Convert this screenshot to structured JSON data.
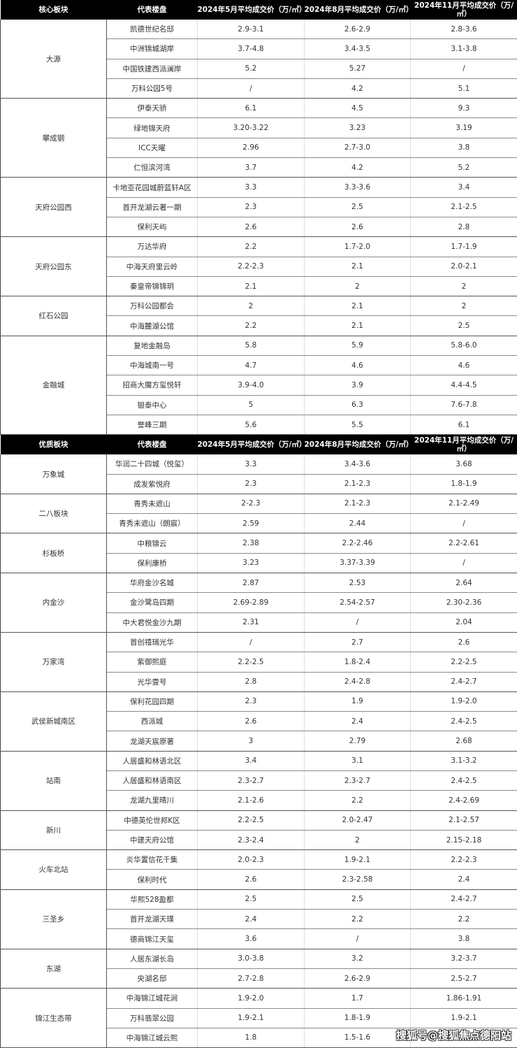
{
  "sections": [
    {
      "header": [
        "核心板块",
        "代表楼盘",
        "2024年5月平均成交价（万/㎡）",
        "2024年8月平均成交价（万/㎡）",
        "2024年11月平均成交价（万/㎡）"
      ],
      "groups": [
        {
          "name": "大源",
          "rows": [
            [
              "凯德世纪名邸",
              "2.9-3.1",
              "2.6-2.9",
              "2.8-3.6"
            ],
            [
              "中洲锦城湖岸",
              "3.7-4.8",
              "3.4-3.5",
              "3.1-3.8"
            ],
            [
              "中国铁建西派澜岸",
              "5.2",
              "5.27",
              "/"
            ],
            [
              "万科公园5号",
              "/",
              "4.2",
              "5.1"
            ]
          ]
        },
        {
          "name": "攀成钢",
          "rows": [
            [
              "伊泰天骄",
              "6.1",
              "4.5",
              "9.3"
            ],
            [
              "绿地锦天府",
              "3.20-3.22",
              "3.23",
              "3.19"
            ],
            [
              "ICC天曜",
              "2.96",
              "2.7-3.0",
              "3.8"
            ],
            [
              "仁恒滨河湾",
              "3.7",
              "4.2",
              "5.2"
            ]
          ]
        },
        {
          "name": "天府公园西",
          "rows": [
            [
              "卡地亚花园城蔚蓝轩A区",
              "3.3",
              "3.3-3.6",
              "3.4"
            ],
            [
              "首开龙湖云著一期",
              "2.3",
              "2.5",
              "2.1-2.5"
            ],
            [
              "保利天屿",
              "2.6",
              "2.6",
              "2.8"
            ]
          ]
        },
        {
          "name": "天府公园东",
          "rows": [
            [
              "万达华府",
              "2.2",
              "1.7-2.0",
              "1.7-1.9"
            ],
            [
              "中海天府里云岭",
              "2.2-2.3",
              "2.1",
              "2.0-2.1"
            ],
            [
              "秦皇帝锦锦玥",
              "2.1",
              "2",
              "2"
            ]
          ]
        },
        {
          "name": "红石公园",
          "rows": [
            [
              "万科公园都会",
              "2",
              "2.1",
              "2"
            ],
            [
              "中海麓湖公馆",
              "2.2",
              "2.1",
              "2.5"
            ]
          ]
        },
        {
          "name": "金融城",
          "rows": [
            [
              "复地金融岛",
              "5.8",
              "5.9",
              "5.8-6.0"
            ],
            [
              "中海城南一号",
              "4.7",
              "4.6",
              "4.6"
            ],
            [
              "招商大魔方玺悦轩",
              "3.9-4.0",
              "3.9",
              "4.4-4.5"
            ],
            [
              "银泰中心",
              "5",
              "6.3",
              "7.6-7.8"
            ],
            [
              "誉峰三期",
              "5.6",
              "5.5",
              "6.1"
            ]
          ]
        }
      ]
    },
    {
      "header": [
        "优质板块",
        "代表楼盘",
        "2024年5月平均成交价（万/㎡）",
        "2024年8月平均成交价（万/㎡）",
        "2024年11月平均成交价（万/㎡）"
      ],
      "groups": [
        {
          "name": "万象城",
          "rows": [
            [
              "华润二十四城（悦玺）",
              "3.3",
              "3.4-3.6",
              "3.68"
            ],
            [
              "成发紫悦府",
              "2.3",
              "2.1-2.3",
              "1.8-1.9"
            ]
          ]
        },
        {
          "name": "二八板块",
          "rows": [
            [
              "青秀未遮山",
              "2-2.3",
              "2.1-2.3",
              "2.1-2.49"
            ],
            [
              "青秀未遮山（朗宸）",
              "2.59",
              "2.44",
              "/"
            ]
          ]
        },
        {
          "name": "杉板桥",
          "rows": [
            [
              "中粮锦云",
              "2.38",
              "2.2-2.46",
              "2.2-2.61"
            ],
            [
              "保利康桥",
              "3.23",
              "3.37-3.39",
              "/"
            ]
          ]
        },
        {
          "name": "内金沙",
          "rows": [
            [
              "华府金沙名城",
              "2.87",
              "2.53",
              "2.64"
            ],
            [
              "金沙鹭岛四期",
              "2.69-2.89",
              "2.54-2.57",
              "2.30-2.36"
            ],
            [
              "中大君悦金沙九期",
              "2.31",
              "/",
              "2.04"
            ]
          ]
        },
        {
          "name": "万家湾",
          "rows": [
            [
              "首创禧瑞光华",
              "/",
              "2.7",
              "2.6"
            ],
            [
              "紫御熙庭",
              "2.2-2.5",
              "1.8-2.4",
              "2.2-2.5"
            ],
            [
              "光华壹号",
              "2.8",
              "2.4-2.8",
              "2.4-2.7"
            ]
          ]
        },
        {
          "name": "武侯新城南区",
          "rows": [
            [
              "保利花园四期",
              "2.3",
              "1.9",
              "1.9-2.0"
            ],
            [
              "西派城",
              "2.6",
              "2.4",
              "2.4-2.5"
            ],
            [
              "龙湖天宸原著",
              "3",
              "2.79",
              "2.68"
            ]
          ]
        },
        {
          "name": "站南",
          "rows": [
            [
              "人居盛和林语北区",
              "3.4",
              "3.1",
              "3.1-3.2"
            ],
            [
              "人居盛和林语南区",
              "2.3-2.7",
              "2.3-2.7",
              "2.4-2.5"
            ],
            [
              "龙湖九里晴川",
              "2.1-2.6",
              "2.2",
              "2.4-2.69"
            ]
          ]
        },
        {
          "name": "新川",
          "rows": [
            [
              "中德英伦世邦K区",
              "2.2-2.5",
              "2.0-2.47",
              "2.1-2.57"
            ],
            [
              "中建天府公馆",
              "2.3-2.4",
              "2",
              "2.15-2.18"
            ]
          ]
        },
        {
          "name": "火车北站",
          "rows": [
            [
              "炎华置信花千集",
              "2.0-2.3",
              "1.9-2.1",
              "2.2-2.3"
            ],
            [
              "保利时代",
              "2.6",
              "2.3-2.58",
              "2.4"
            ]
          ]
        },
        {
          "name": "三圣乡",
          "rows": [
            [
              "华熙528盈都",
              "2.5",
              "2.5",
              "2.4-2.7"
            ],
            [
              "首开龙湖天璞",
              "2.4",
              "2.2",
              "2.2"
            ],
            [
              "德商锦江天玺",
              "3.6",
              "/",
              "3.8"
            ]
          ]
        },
        {
          "name": "东湖",
          "rows": [
            [
              "人居东湖长岛",
              "3.0-3.8",
              "3.2",
              "3.2-3.7"
            ],
            [
              "央湖名邸",
              "2.7-2.8",
              "2.6-2.9",
              "2.5-2.7"
            ]
          ]
        },
        {
          "name": "锦江生态带",
          "rows": [
            [
              "中海锦江城花涧",
              "1.9-2.0",
              "1.7",
              "1.86-1.91"
            ],
            [
              "万科翡翠公园",
              "1.9-2.1",
              "1.8-1.9",
              "1.9-2.1"
            ],
            [
              "中海锦江城云熙",
              "1.8",
              "1.5-1.6",
              ""
            ]
          ]
        }
      ]
    }
  ],
  "watermark": "搜狐号@搜狐焦点德阳站"
}
